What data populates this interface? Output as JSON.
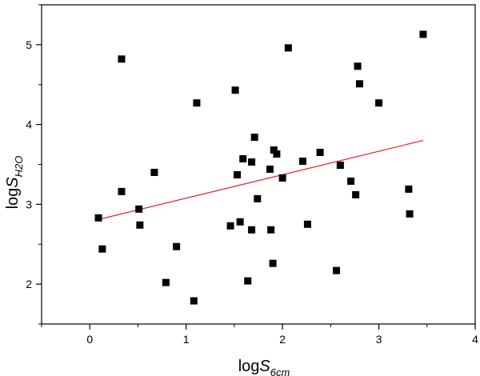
{
  "chart_data": {
    "type": "scatter",
    "title": "",
    "xlabel": {
      "prefix": "log",
      "symbol": "S",
      "subscript": "6cm"
    },
    "ylabel": {
      "prefix": "log",
      "symbol": "S",
      "subscript": "H2O"
    },
    "xlim": [
      -0.5,
      4
    ],
    "ylim": [
      1.5,
      5.5
    ],
    "xticks": [
      0,
      1,
      2,
      3,
      4
    ],
    "yticks": [
      2,
      3,
      4,
      5
    ],
    "xtick_labels": [
      "0",
      "1",
      "2",
      "3",
      "4"
    ],
    "ytick_labels": [
      "2",
      "3",
      "4",
      "5"
    ],
    "grid": false,
    "marker_color": "#000000",
    "fit_color": "#e0201e",
    "points": [
      {
        "x": 0.09,
        "y": 2.83
      },
      {
        "x": 0.13,
        "y": 2.44
      },
      {
        "x": 0.33,
        "y": 4.82
      },
      {
        "x": 0.33,
        "y": 3.16
      },
      {
        "x": 0.51,
        "y": 2.94
      },
      {
        "x": 0.52,
        "y": 2.74
      },
      {
        "x": 0.67,
        "y": 3.4
      },
      {
        "x": 0.79,
        "y": 2.02
      },
      {
        "x": 0.9,
        "y": 2.47
      },
      {
        "x": 1.08,
        "y": 1.79
      },
      {
        "x": 1.11,
        "y": 4.27
      },
      {
        "x": 1.46,
        "y": 2.73
      },
      {
        "x": 1.51,
        "y": 4.43
      },
      {
        "x": 1.53,
        "y": 3.37
      },
      {
        "x": 1.56,
        "y": 2.78
      },
      {
        "x": 1.59,
        "y": 3.57
      },
      {
        "x": 1.64,
        "y": 2.04
      },
      {
        "x": 1.68,
        "y": 3.53
      },
      {
        "x": 1.68,
        "y": 2.68
      },
      {
        "x": 1.71,
        "y": 3.84
      },
      {
        "x": 1.74,
        "y": 3.07
      },
      {
        "x": 1.87,
        "y": 3.44
      },
      {
        "x": 1.88,
        "y": 2.68
      },
      {
        "x": 1.9,
        "y": 2.26
      },
      {
        "x": 1.91,
        "y": 3.68
      },
      {
        "x": 1.94,
        "y": 3.63
      },
      {
        "x": 2.0,
        "y": 3.33
      },
      {
        "x": 2.06,
        "y": 4.96
      },
      {
        "x": 2.21,
        "y": 3.54
      },
      {
        "x": 2.26,
        "y": 2.75
      },
      {
        "x": 2.39,
        "y": 3.65
      },
      {
        "x": 2.56,
        "y": 2.17
      },
      {
        "x": 2.6,
        "y": 3.49
      },
      {
        "x": 2.71,
        "y": 3.29
      },
      {
        "x": 2.76,
        "y": 3.12
      },
      {
        "x": 2.78,
        "y": 4.73
      },
      {
        "x": 2.8,
        "y": 4.51
      },
      {
        "x": 3.0,
        "y": 4.27
      },
      {
        "x": 3.31,
        "y": 3.19
      },
      {
        "x": 3.32,
        "y": 2.88
      },
      {
        "x": 3.46,
        "y": 5.13
      }
    ],
    "fit_line": {
      "x": [
        0.09,
        3.46
      ],
      "y": [
        2.81,
        3.8
      ]
    }
  }
}
